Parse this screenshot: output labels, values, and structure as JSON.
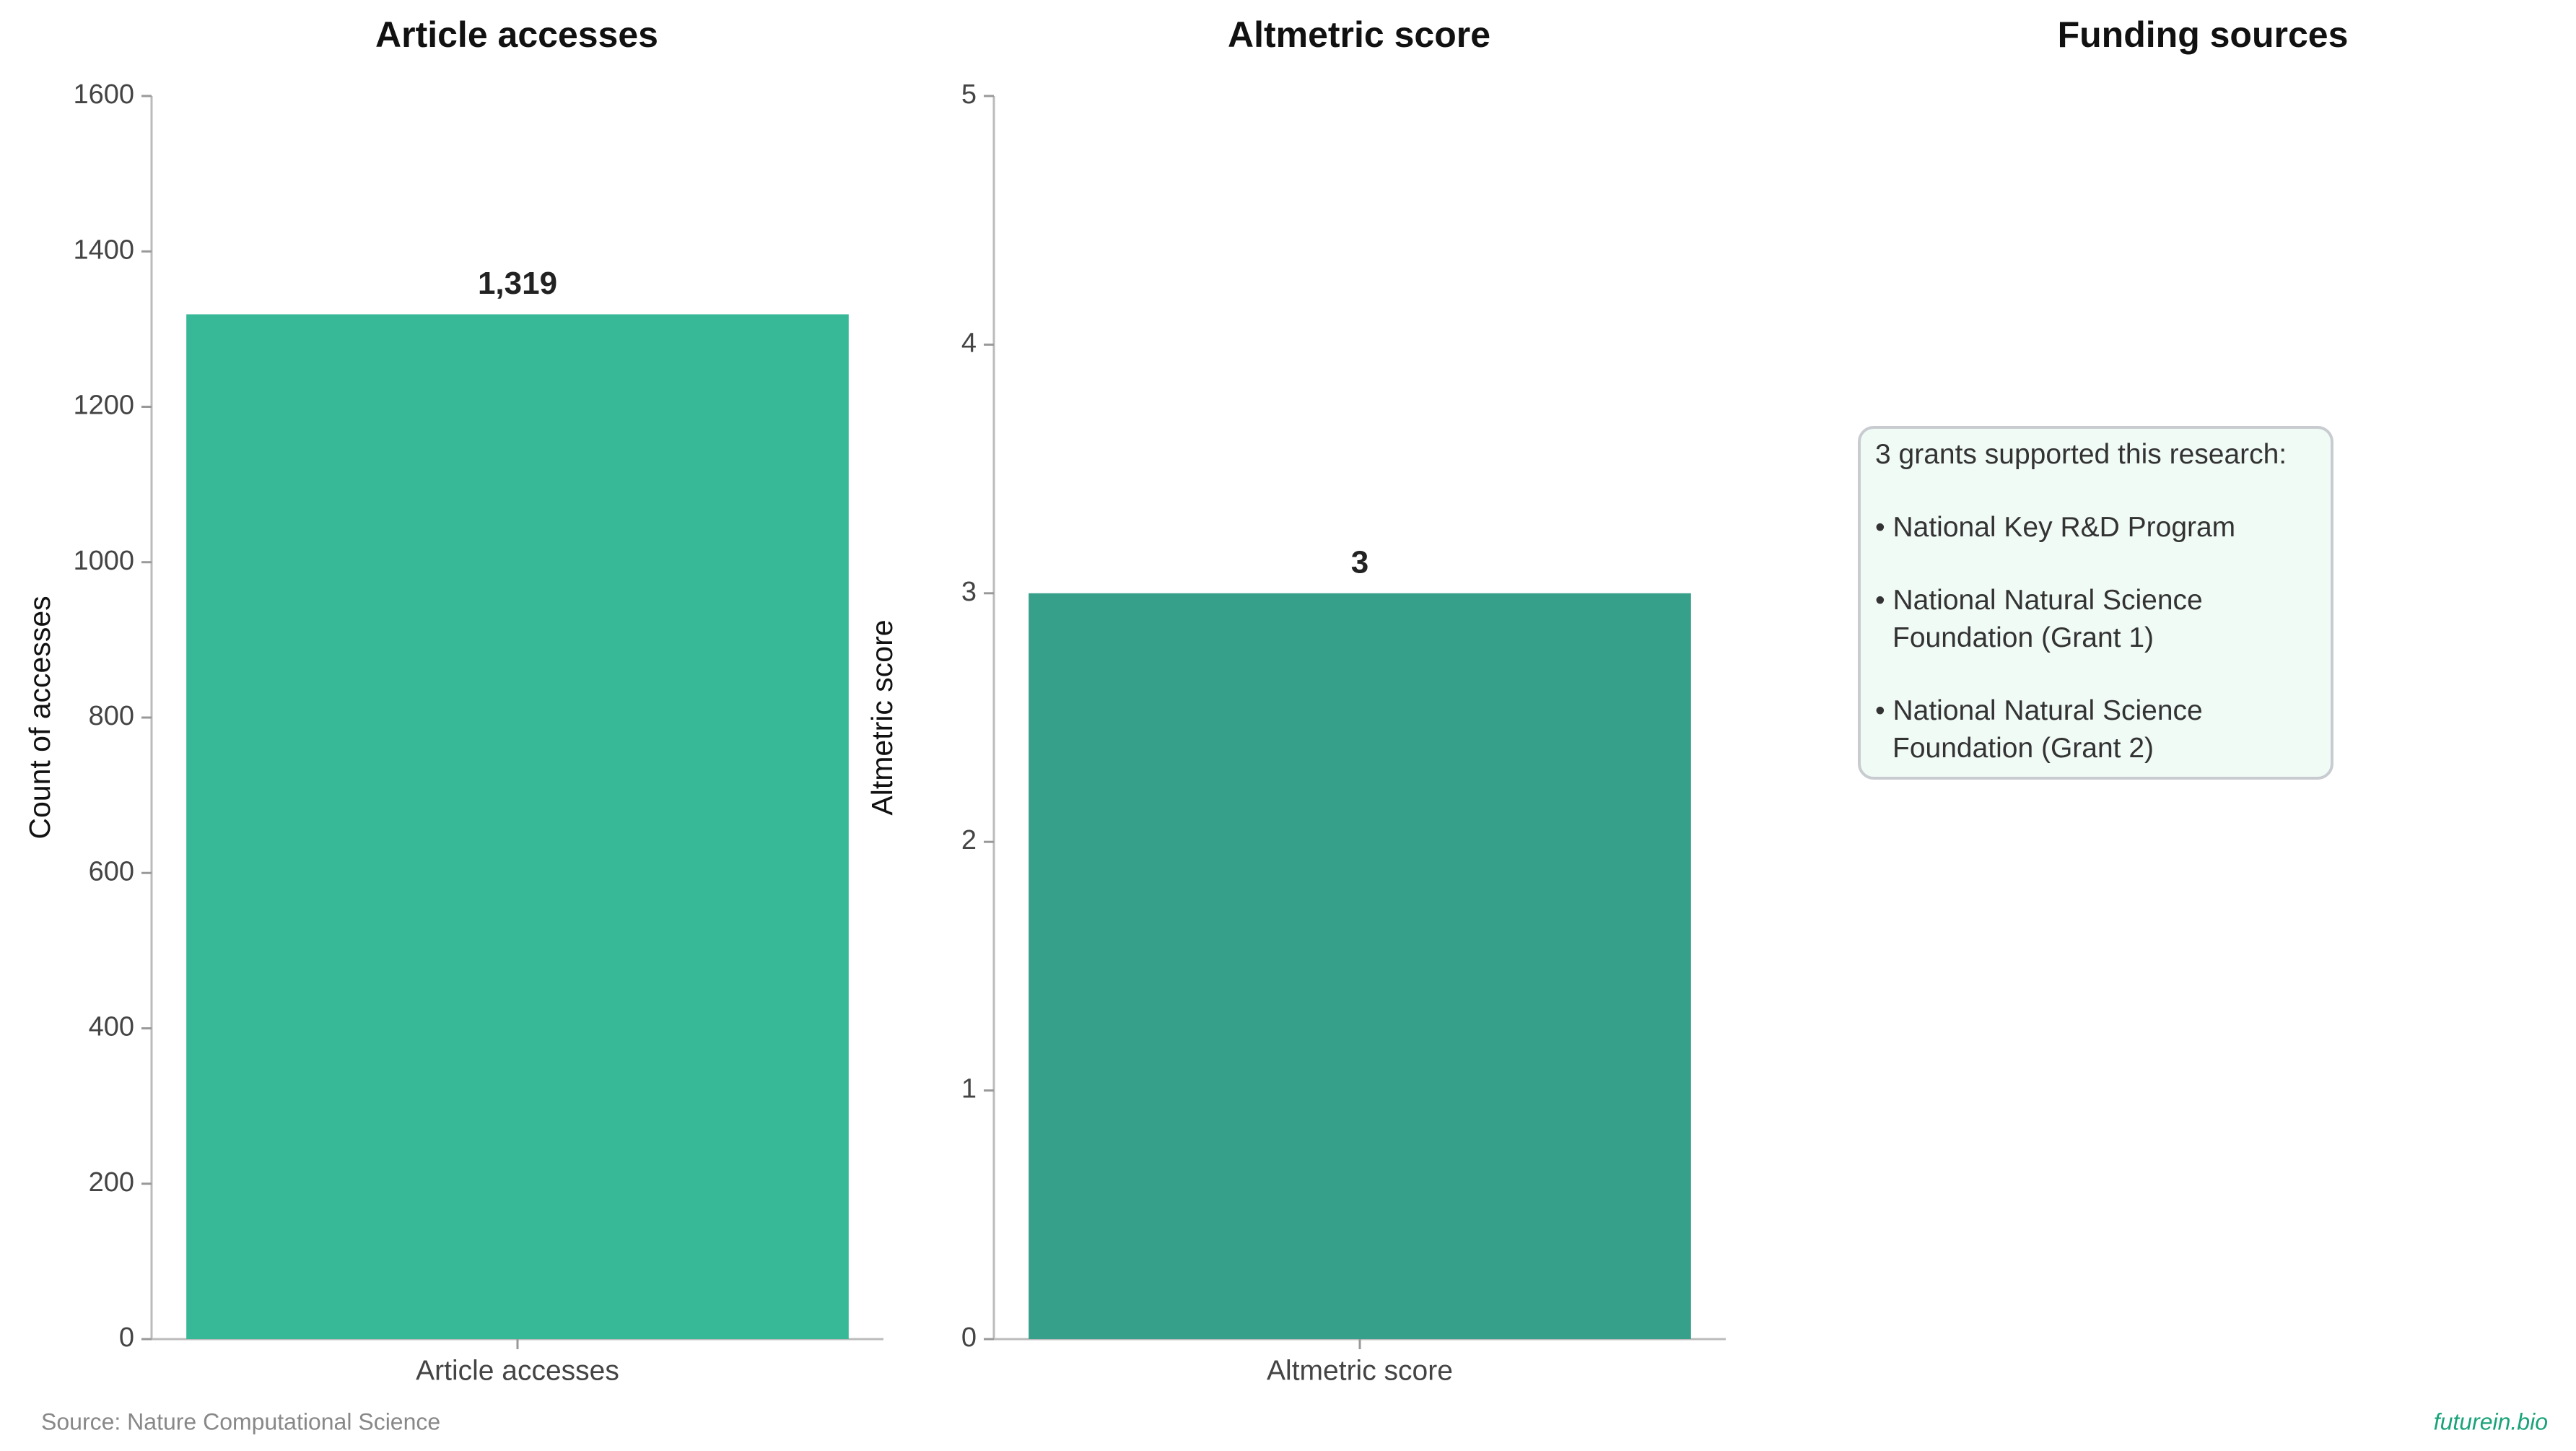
{
  "chart_data": [
    {
      "type": "bar",
      "title": "Article accesses",
      "ylabel": "Count of accesses",
      "categories": [
        "Article accesses"
      ],
      "values": [
        1319
      ],
      "value_labels": [
        "1,319"
      ],
      "color": "#37b897",
      "ylim": [
        0,
        1600
      ],
      "yticks": [
        0,
        200,
        400,
        600,
        800,
        1000,
        1200,
        1400,
        1600
      ]
    },
    {
      "type": "bar",
      "title": "Altmetric score",
      "ylabel": "Altmetric score",
      "categories": [
        "Altmetric score"
      ],
      "values": [
        3
      ],
      "color": "#37a08b",
      "ylim": [
        0,
        5
      ],
      "yticks": [
        0,
        1,
        2,
        3,
        4,
        5
      ]
    },
    {
      "type": "text",
      "title": "Funding sources",
      "heading": "3 grants supported this research:",
      "items": [
        "• National Key R&D Program",
        "• National Natural Science Foundation (Grant 1)",
        "• National Natural Science Foundation (Grant 2)"
      ]
    }
  ],
  "source": "Source: Nature Computational Science",
  "brand": "futurein.bio"
}
